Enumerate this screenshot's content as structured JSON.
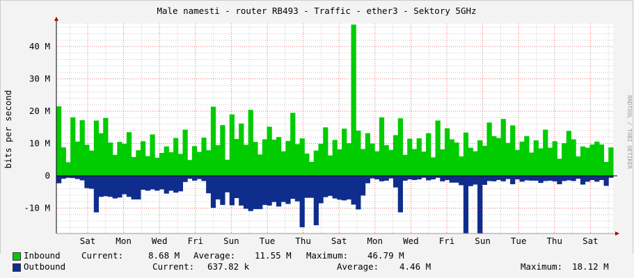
{
  "title": "Male namesti - router RB493 - Traffic - ether3 - Sektory 5GHz",
  "watermark": "RRDTOOL / TOBI OETIKER",
  "chart_data": {
    "type": "area",
    "ylabel": "bits per second",
    "ylim": [
      -18,
      47
    ],
    "yticks": [
      {
        "value": 40,
        "label": "40 M"
      },
      {
        "value": 30,
        "label": "30 M"
      },
      {
        "value": 20,
        "label": "20 M"
      },
      {
        "value": 10,
        "label": "10 M"
      },
      {
        "value": 0,
        "label": "0"
      },
      {
        "value": -10,
        "label": "-10 M"
      }
    ],
    "xticks": [
      "Sat",
      "Mon",
      "Wed",
      "Fri",
      "Sun",
      "Tue",
      "Thu",
      "Sat",
      "Mon",
      "Wed",
      "Fri",
      "Sun",
      "Tue",
      "Thu",
      "Sat"
    ],
    "grid": true,
    "colors": {
      "inbound": "#00cc00",
      "outbound": "#0f2d8c",
      "grid_major": "#e07070",
      "grid_minor": "#c8c8c8",
      "background": "#ffffff"
    },
    "series": [
      {
        "name": "Inbound",
        "unit": "M",
        "values": [
          21.5,
          8.8,
          4.2,
          18.1,
          10.6,
          17.2,
          9.6,
          7.8,
          17.1,
          13.2,
          17.9,
          10.3,
          6.5,
          10.5,
          9.9,
          13.5,
          5.8,
          7.9,
          10.7,
          6.1,
          12.8,
          5.6,
          7.1,
          9.1,
          7.3,
          11.7,
          6.8,
          14.3,
          4.9,
          9.2,
          7.4,
          11.8,
          7.9,
          21.4,
          9.5,
          15.7,
          5.0,
          19.0,
          11.4,
          16.2,
          9.6,
          20.4,
          10.5,
          6.6,
          11.3,
          15.2,
          11.2,
          12.0,
          7.6,
          10.8,
          19.5,
          9.8,
          11.6,
          6.9,
          4.3,
          7.8,
          9.9,
          15.0,
          6.3,
          11.1,
          8.2,
          14.6,
          10.1,
          46.8,
          14.0,
          8.3,
          13.2,
          10.0,
          7.6,
          18.1,
          9.5,
          8.0,
          12.6,
          17.8,
          6.5,
          11.5,
          8.3,
          11.6,
          7.5,
          13.2,
          5.7,
          17.1,
          8.2,
          14.7,
          11.3,
          10.3,
          6.0,
          13.4,
          8.7,
          7.6,
          11.0,
          9.3,
          16.5,
          12.3,
          11.7,
          17.6,
          10.2,
          15.6,
          8.0,
          10.6,
          12.3,
          7.2,
          11.0,
          8.5,
          14.3,
          8.7,
          10.7,
          5.3,
          10.1,
          13.9,
          11.3,
          6.0,
          9.1,
          8.7,
          9.7,
          10.6,
          9.7,
          4.3,
          8.8
        ],
        "stats": {
          "current": "8.68 M",
          "average": "11.55 M",
          "maximum": "46.79 M"
        }
      },
      {
        "name": "Outbound",
        "unit": "M",
        "values": [
          -2.3,
          -0.9,
          -0.6,
          -0.7,
          -1.0,
          -1.4,
          -3.8,
          -4.0,
          -11.3,
          -6.5,
          -6.3,
          -6.5,
          -7.0,
          -6.7,
          -5.7,
          -6.5,
          -7.3,
          -7.3,
          -4.3,
          -4.6,
          -4.2,
          -4.6,
          -4.2,
          -5.5,
          -4.6,
          -5.2,
          -4.8,
          -1.9,
          -0.9,
          -1.5,
          -1.0,
          -1.6,
          -5.4,
          -9.9,
          -7.3,
          -9.0,
          -5.1,
          -9.1,
          -6.9,
          -9.2,
          -10.2,
          -10.9,
          -10.3,
          -10.3,
          -9.0,
          -9.2,
          -8.1,
          -9.5,
          -8.1,
          -8.7,
          -7.1,
          -7.9,
          -15.9,
          -6.8,
          -6.8,
          -15.3,
          -8.5,
          -6.6,
          -6.2,
          -7.0,
          -7.4,
          -7.6,
          -7.3,
          -8.9,
          -10.4,
          -6.1,
          -2.3,
          -0.8,
          -1.1,
          -1.7,
          -1.5,
          -0.8,
          -3.6,
          -11.3,
          -1.5,
          -1.1,
          -1.3,
          -1.1,
          -0.6,
          -1.4,
          -1.1,
          -0.6,
          -1.7,
          -1.3,
          -2.1,
          -2.1,
          -2.9,
          -17.9,
          -3.2,
          -2.7,
          -17.9,
          -2.8,
          -1.6,
          -1.7,
          -1.3,
          -1.7,
          -1.0,
          -2.6,
          -1.1,
          -1.8,
          -1.4,
          -1.5,
          -1.5,
          -2.2,
          -1.6,
          -1.5,
          -1.7,
          -2.6,
          -1.6,
          -1.4,
          -1.6,
          -0.9,
          -2.7,
          -1.8,
          -1.3,
          -1.8,
          -1.3,
          -3.1,
          -0.6
        ],
        "stats": {
          "current": "637.82 k",
          "average": "4.46 M",
          "maximum": "18.12 M"
        }
      }
    ]
  },
  "legend": {
    "inbound": {
      "name": "Inbound",
      "current_label": "Current:",
      "current": "8.68 M",
      "average_label": "Average:",
      "average": "11.55 M",
      "maximum_label": "Maximum:",
      "maximum": "46.79 M"
    },
    "outbound": {
      "name": "Outbound",
      "current_label": "Current:",
      "current": "637.82 k",
      "average_label": "Average:",
      "average": "4.46 M",
      "maximum_label": "Maximum:",
      "maximum": "18.12 M"
    }
  }
}
